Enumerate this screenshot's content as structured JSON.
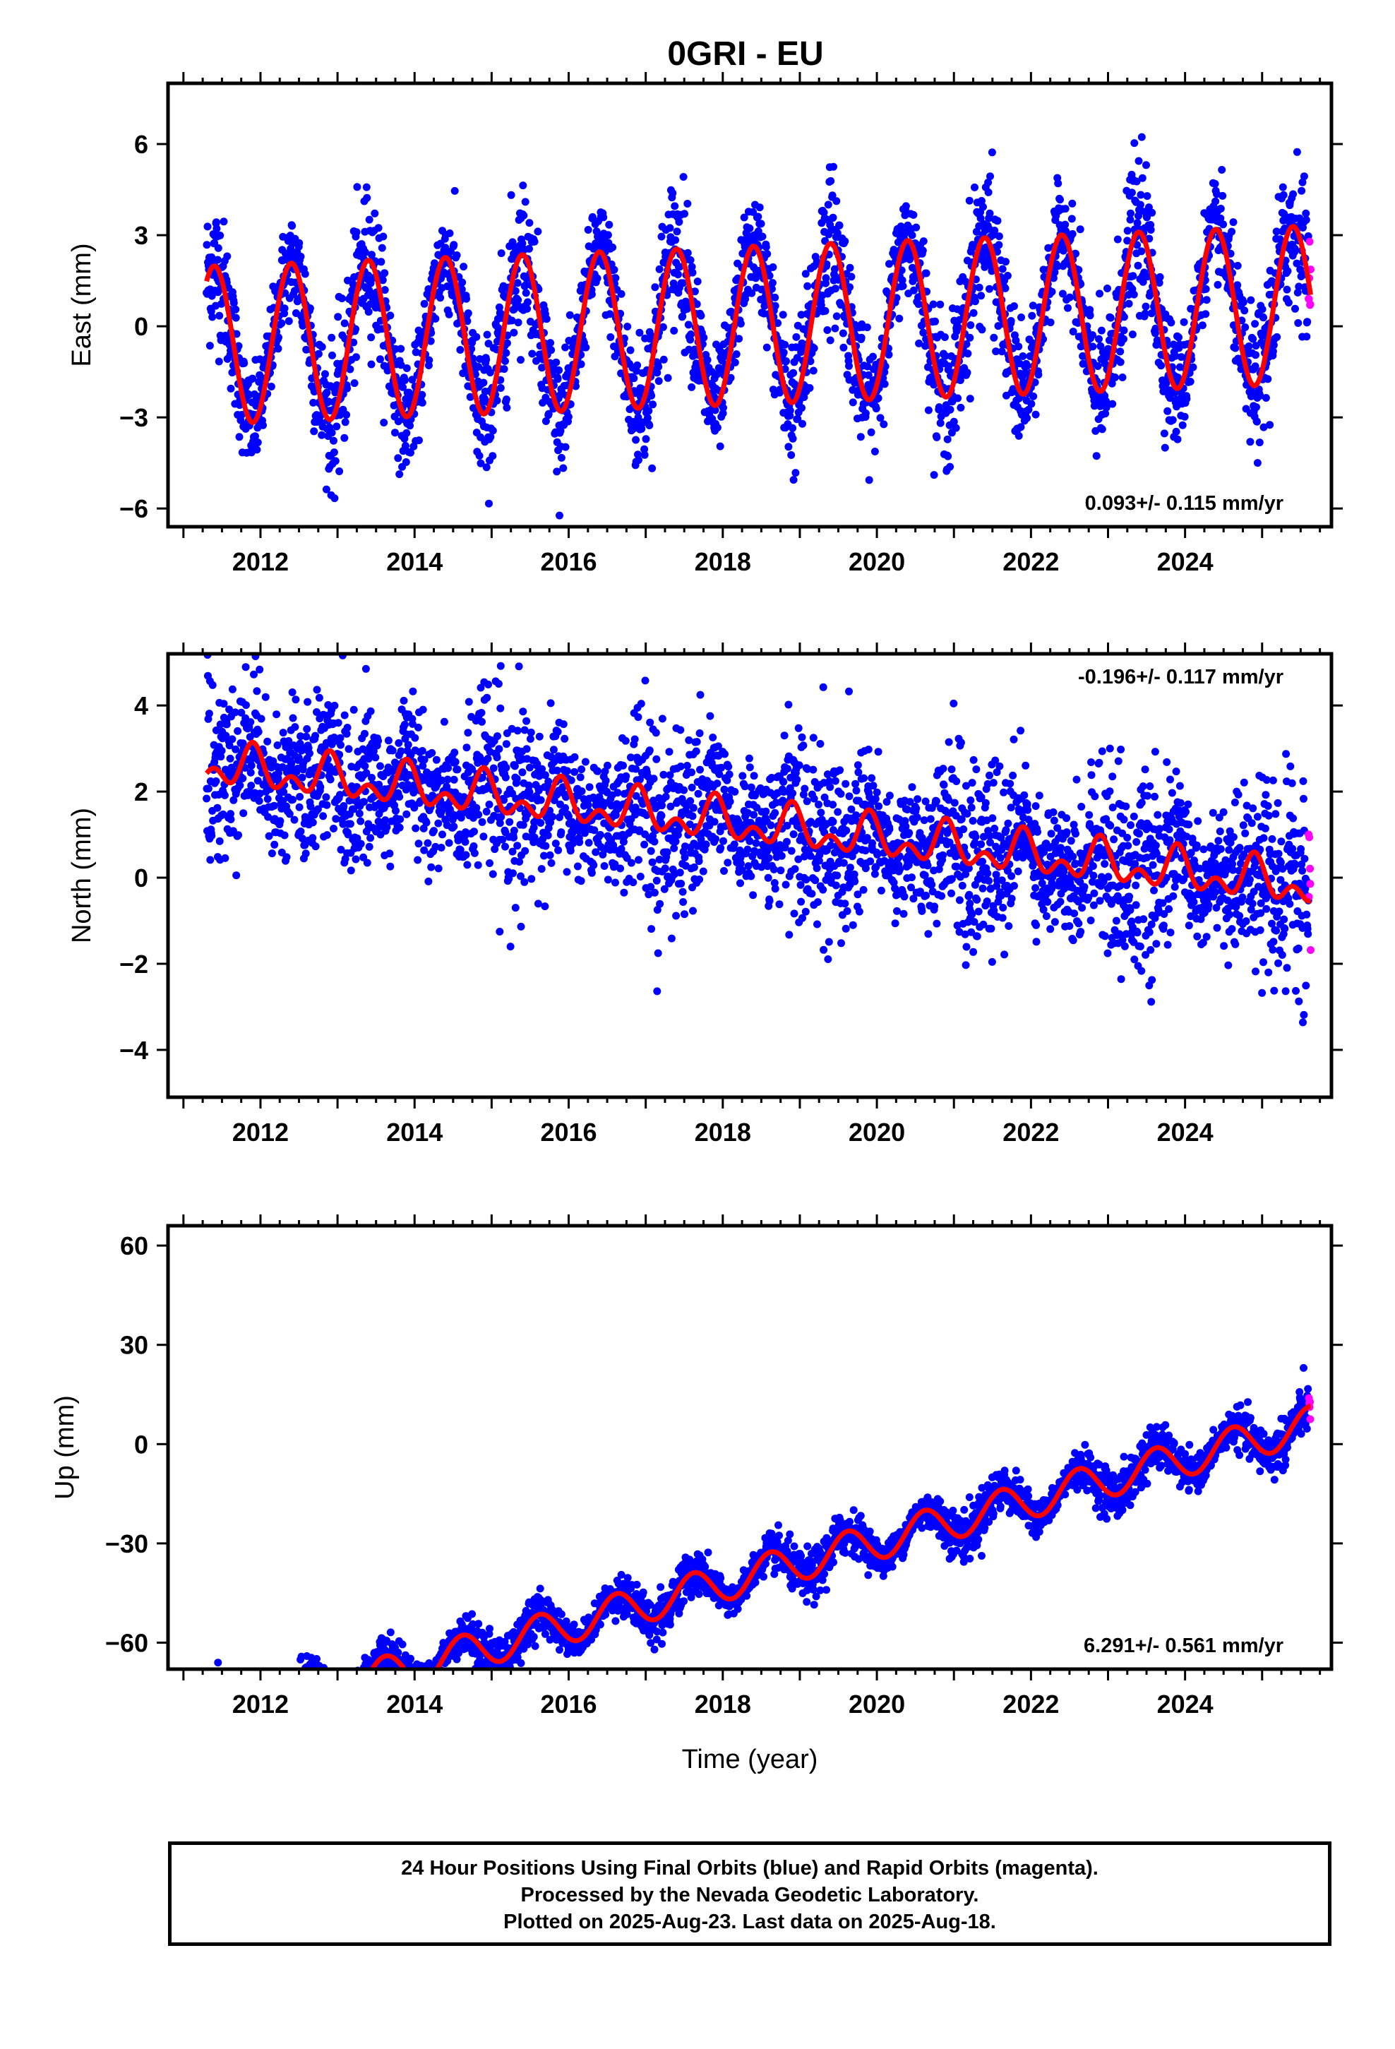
{
  "title": "0GRI - EU",
  "x_tick_labels": [
    "2012",
    "2014",
    "2016",
    "2018",
    "2020",
    "2022",
    "2024"
  ],
  "colors": {
    "final": "#0000ff",
    "rapid": "#ff00ff",
    "model": "#ff0000"
  },
  "footer": {
    "line1": "24 Hour Positions Using Final Orbits (blue) and Rapid Orbits (magenta).",
    "line2": "Processed by the Nevada Geodetic Laboratory.",
    "line3": "Plotted on 2025-Aug-23. Last data on 2025-Aug-18."
  },
  "chart_data": [
    {
      "type": "scatter",
      "name": "east",
      "ylabel": "East (mm)",
      "xlabel": "",
      "xlim": [
        2010.8,
        2025.9
      ],
      "ylim": [
        -6.6,
        8.0
      ],
      "yticks": [
        -6,
        -3,
        0,
        3,
        6
      ],
      "ytick_labels": [
        "−6",
        "−3",
        "0",
        "3",
        "6"
      ],
      "rate_text": "0.093+/- 0.115 mm/yr",
      "x_start": 2011.3,
      "x_end": 2025.63,
      "rapid_start": 2025.6,
      "model": {
        "trend": 0.093,
        "offset": 0.0,
        "annual_amp": 2.6,
        "annual_phase_peak": 0.4,
        "semi_amp": 0.0
      },
      "noise": 1.0,
      "legend": "none"
    },
    {
      "type": "scatter",
      "name": "north",
      "ylabel": "North (mm)",
      "xlabel": "",
      "xlim": [
        2010.8,
        2025.9
      ],
      "ylim": [
        -5.1,
        5.2
      ],
      "yticks": [
        -4,
        -2,
        0,
        2,
        4
      ],
      "ytick_labels": [
        "−4",
        "−2",
        "0",
        "2",
        "4"
      ],
      "rate_text": "-0.196+/- 0.117 mm/yr",
      "x_start": 2011.3,
      "x_end": 2025.63,
      "rapid_start": 2025.6,
      "model": {
        "trend": -0.196,
        "offset": 1.3,
        "annual_amp": 0.35,
        "annual_phase_peak": 0.9,
        "semi_amp": 0.3
      },
      "noise": 0.9,
      "legend": "none"
    },
    {
      "type": "scatter",
      "name": "up",
      "ylabel": "Up (mm)",
      "xlabel": "Time (year)",
      "xlim": [
        2010.8,
        2025.9
      ],
      "ylim": [
        -68,
        66
      ],
      "yticks": [
        -60,
        -30,
        0,
        30,
        60
      ],
      "ytick_labels": [
        "−60",
        "−30",
        "0",
        "30",
        "60"
      ],
      "rate_text": "6.291+/- 0.561 mm/yr",
      "x_start": 2011.3,
      "x_end": 2025.63,
      "rapid_start": 2025.6,
      "model": {
        "trend": 6.291,
        "offset": -42.0,
        "annual_amp": 5.5,
        "annual_phase_peak": 0.62,
        "semi_amp": 0.0
      },
      "noise": 3.0,
      "legend": "none"
    }
  ]
}
